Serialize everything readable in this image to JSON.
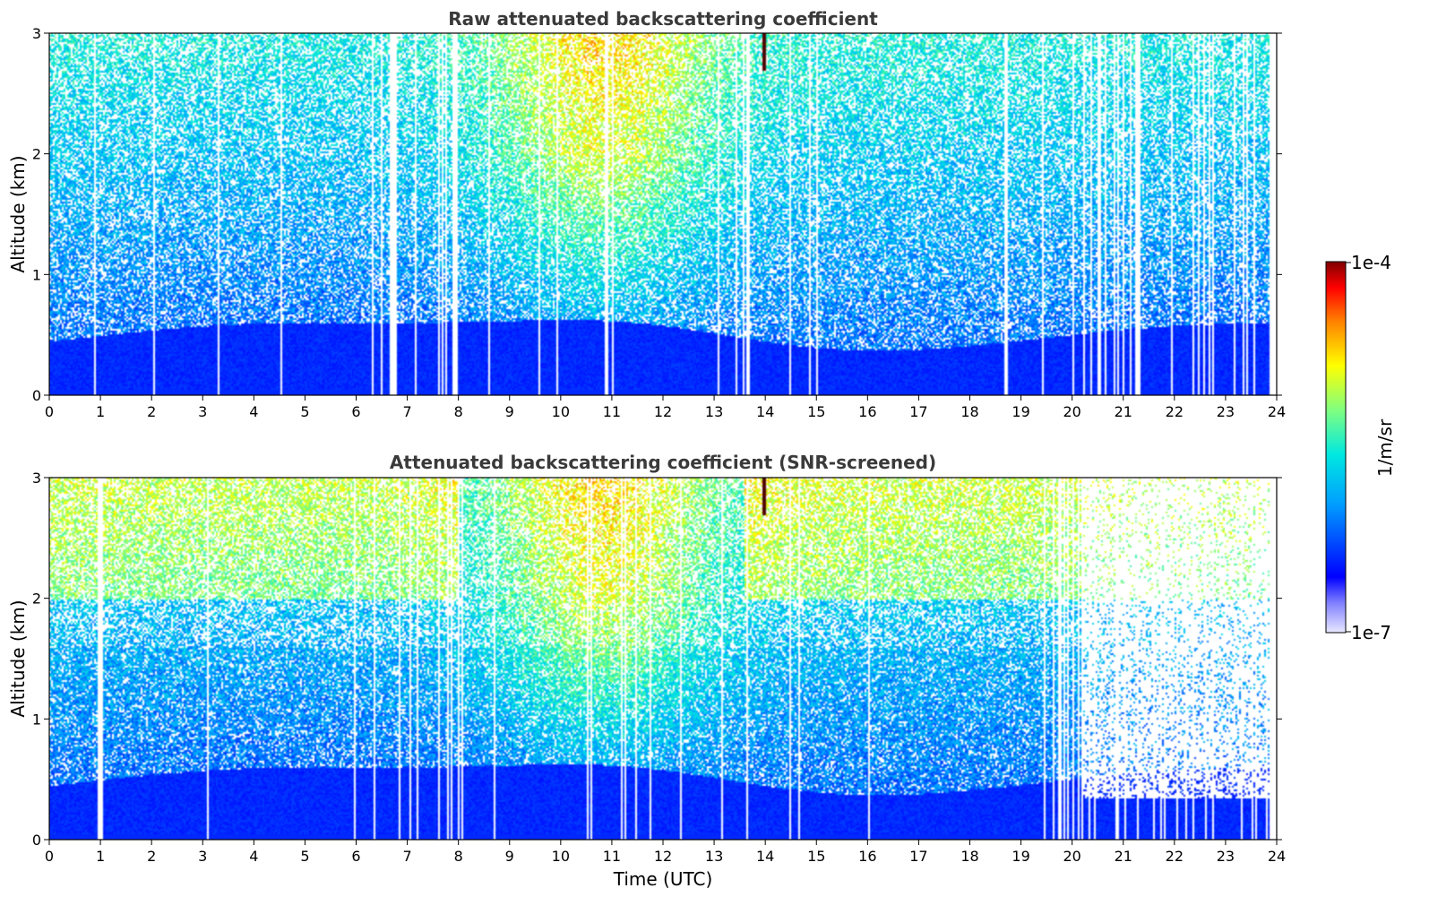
{
  "chart_data": [
    {
      "type": "heatmap",
      "title": "Raw attenuated backscattering coefficient",
      "xlabel": "",
      "ylabel": "Altitude (km)",
      "xlim": [
        0,
        24
      ],
      "ylim": [
        0,
        3
      ],
      "xticks": [
        "0",
        "1",
        "2",
        "3",
        "4",
        "5",
        "6",
        "7",
        "8",
        "9",
        "10",
        "11",
        "12",
        "13",
        "14",
        "15",
        "16",
        "17",
        "18",
        "19",
        "20",
        "21",
        "22",
        "23",
        "24"
      ],
      "yticks": [
        "0",
        "1",
        "2",
        "3"
      ],
      "screened": false
    },
    {
      "type": "heatmap",
      "title": "Attenuated backscattering coefficient (SNR-screened)",
      "xlabel": "Time (UTC)",
      "ylabel": "Altitude (km)",
      "xlim": [
        0,
        24
      ],
      "ylim": [
        0,
        3
      ],
      "xticks": [
        "0",
        "1",
        "2",
        "3",
        "4",
        "5",
        "6",
        "7",
        "8",
        "9",
        "10",
        "11",
        "12",
        "13",
        "14",
        "15",
        "16",
        "17",
        "18",
        "19",
        "20",
        "21",
        "22",
        "23",
        "24"
      ],
      "yticks": [
        "0",
        "1",
        "2",
        "3"
      ],
      "screened": true
    }
  ],
  "colorbar": {
    "label": "1/m/sr",
    "max_label": "1e-4",
    "min_label": "1e-7",
    "scale": "log",
    "colormap": "jet",
    "colors": [
      "#e8e8ff",
      "#0000ff",
      "#00c8ff",
      "#70ff90",
      "#ffff00",
      "#ff8000",
      "#ff0000",
      "#7f0000"
    ]
  }
}
